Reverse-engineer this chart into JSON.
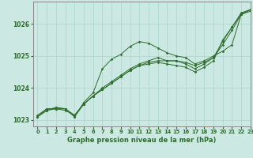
{
  "title": "Graphe pression niveau de la mer (hPa)",
  "xlim": [
    -0.5,
    23
  ],
  "ylim": [
    1022.8,
    1026.7
  ],
  "yticks": [
    1023,
    1024,
    1025,
    1026
  ],
  "xticks": [
    0,
    1,
    2,
    3,
    4,
    5,
    6,
    7,
    8,
    9,
    10,
    11,
    12,
    13,
    14,
    15,
    16,
    17,
    18,
    19,
    20,
    21,
    22,
    23
  ],
  "bg_color": "#cce8e2",
  "grid_color": "#aad4cc",
  "line_color": "#2d6e2d",
  "text_color": "#2d6e2d",
  "series": [
    {
      "x": [
        0,
        1,
        2,
        3,
        4,
        5,
        6,
        7,
        8,
        9,
        10,
        11,
        12,
        13,
        14,
        15,
        16,
        17,
        18,
        19,
        20,
        21,
        22,
        23
      ],
      "y": [
        1023.15,
        1023.35,
        1023.35,
        1023.35,
        1023.1,
        1023.55,
        1023.85,
        1024.6,
        1024.9,
        1025.05,
        1025.3,
        1025.45,
        1025.4,
        1025.25,
        1025.1,
        1025.0,
        1024.95,
        1024.75,
        1024.85,
        1025.0,
        1025.15,
        1025.35,
        1026.3,
        1026.4
      ]
    },
    {
      "x": [
        0,
        1,
        2,
        3,
        4,
        5,
        6,
        7,
        8,
        9,
        10,
        11,
        12,
        13,
        14,
        15,
        16,
        17,
        18,
        19,
        20,
        21,
        22,
        23
      ],
      "y": [
        1023.1,
        1023.3,
        1023.35,
        1023.3,
        1023.15,
        1023.5,
        1023.75,
        1023.95,
        1024.15,
        1024.35,
        1024.55,
        1024.7,
        1024.8,
        1024.85,
        1024.85,
        1024.85,
        1024.8,
        1024.7,
        1024.8,
        1024.95,
        1025.45,
        1025.9,
        1026.3,
        1026.45
      ]
    },
    {
      "x": [
        0,
        1,
        2,
        3,
        4,
        5,
        6,
        7,
        8,
        9,
        10,
        11,
        12,
        13,
        14,
        15,
        16,
        17,
        18,
        19,
        20,
        21,
        22,
        23
      ],
      "y": [
        1023.1,
        1023.3,
        1023.4,
        1023.35,
        1023.15,
        1023.5,
        1023.75,
        1024.0,
        1024.2,
        1024.4,
        1024.6,
        1024.75,
        1024.85,
        1024.95,
        1024.85,
        1024.85,
        1024.75,
        1024.6,
        1024.75,
        1024.95,
        1025.35,
        1025.8,
        1026.3,
        1026.45
      ]
    },
    {
      "x": [
        0,
        1,
        2,
        3,
        4,
        5,
        6,
        7,
        8,
        9,
        10,
        11,
        12,
        13,
        14,
        15,
        16,
        17,
        18,
        19,
        20,
        21,
        22,
        23
      ],
      "y": [
        1023.1,
        1023.35,
        1023.35,
        1023.35,
        1023.1,
        1023.5,
        1023.75,
        1023.95,
        1024.15,
        1024.35,
        1024.55,
        1024.7,
        1024.75,
        1024.8,
        1024.75,
        1024.7,
        1024.65,
        1024.5,
        1024.65,
        1024.85,
        1025.5,
        1025.9,
        1026.35,
        1026.45
      ]
    }
  ]
}
